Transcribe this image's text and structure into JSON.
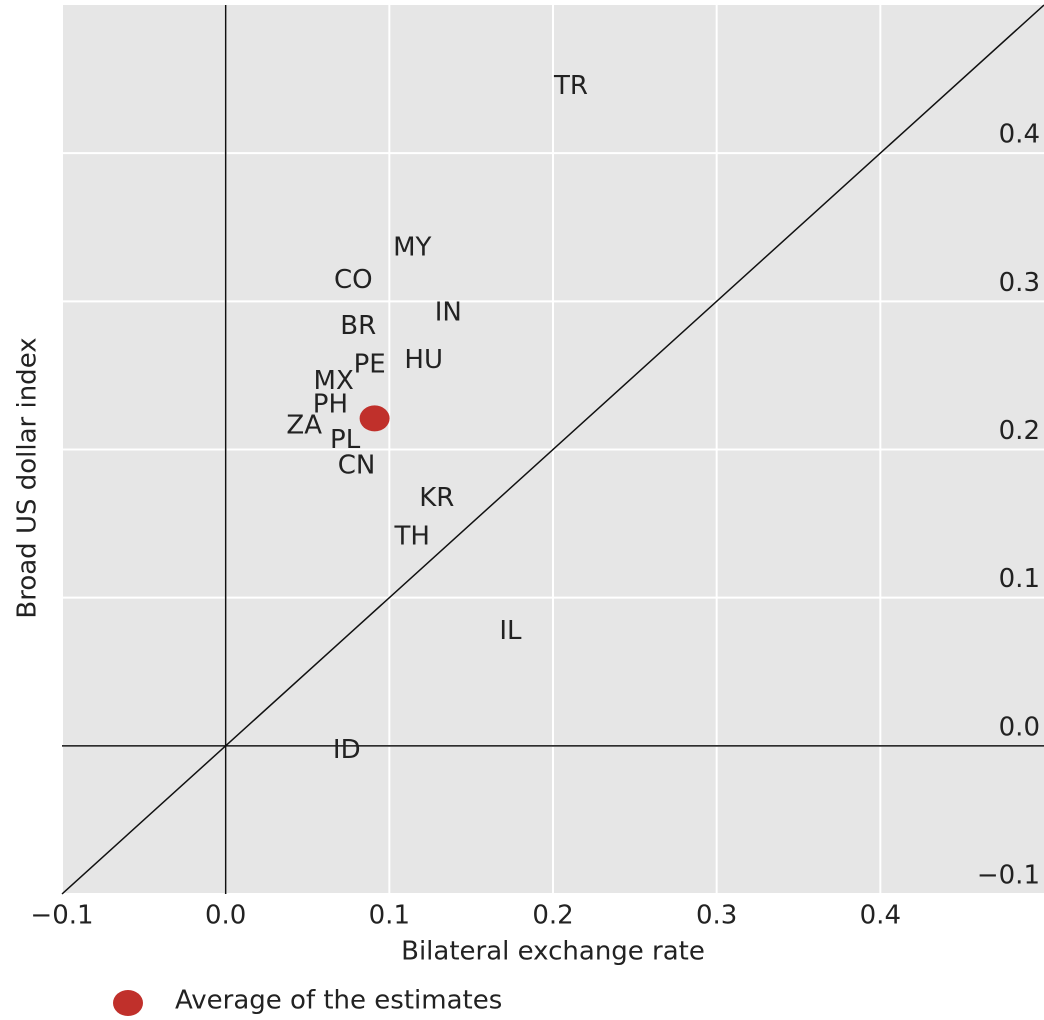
{
  "chart_data": {
    "type": "scatter",
    "x_label": "Bilateral exchange rate",
    "y_label": "Broad US dollar index",
    "xlim": [
      -0.1,
      0.5
    ],
    "ylim": [
      -0.1,
      0.5
    ],
    "xticks": [
      {
        "value": -0.1,
        "label": "−0.1"
      },
      {
        "value": 0,
        "label": "0.0"
      },
      0.1,
      0.2,
      0.3,
      0.4
    ],
    "yticks": [
      {
        "value": -0.1,
        "label": "−0.1"
      },
      {
        "value": 0,
        "label": "0.0"
      },
      0.1,
      0.2,
      0.3,
      0.4
    ],
    "grid": true,
    "points": {
      "labels": [
        "TR",
        "MY",
        "CO",
        "IN",
        "BR",
        "PE",
        "HU",
        "MX",
        "PH",
        "ZA",
        "PL",
        "CN",
        "KR",
        "TH",
        "IL",
        "ID"
      ],
      "x": [
        0.211,
        0.114,
        0.078,
        0.136,
        0.081,
        0.088,
        0.121,
        0.066,
        0.064,
        0.048,
        0.073,
        0.08,
        0.129,
        0.114,
        0.174,
        0.074
      ],
      "values": [
        0.445,
        0.336,
        0.314,
        0.292,
        0.283,
        0.257,
        0.26,
        0.246,
        0.23,
        0.216,
        0.206,
        0.189,
        0.167,
        0.141,
        0.077,
        -0.003
      ]
    },
    "series": [
      {
        "name": "Average of the estimates",
        "color": "#c0302b",
        "x": [
          0.091
        ],
        "values": [
          0.221
        ]
      }
    ]
  }
}
